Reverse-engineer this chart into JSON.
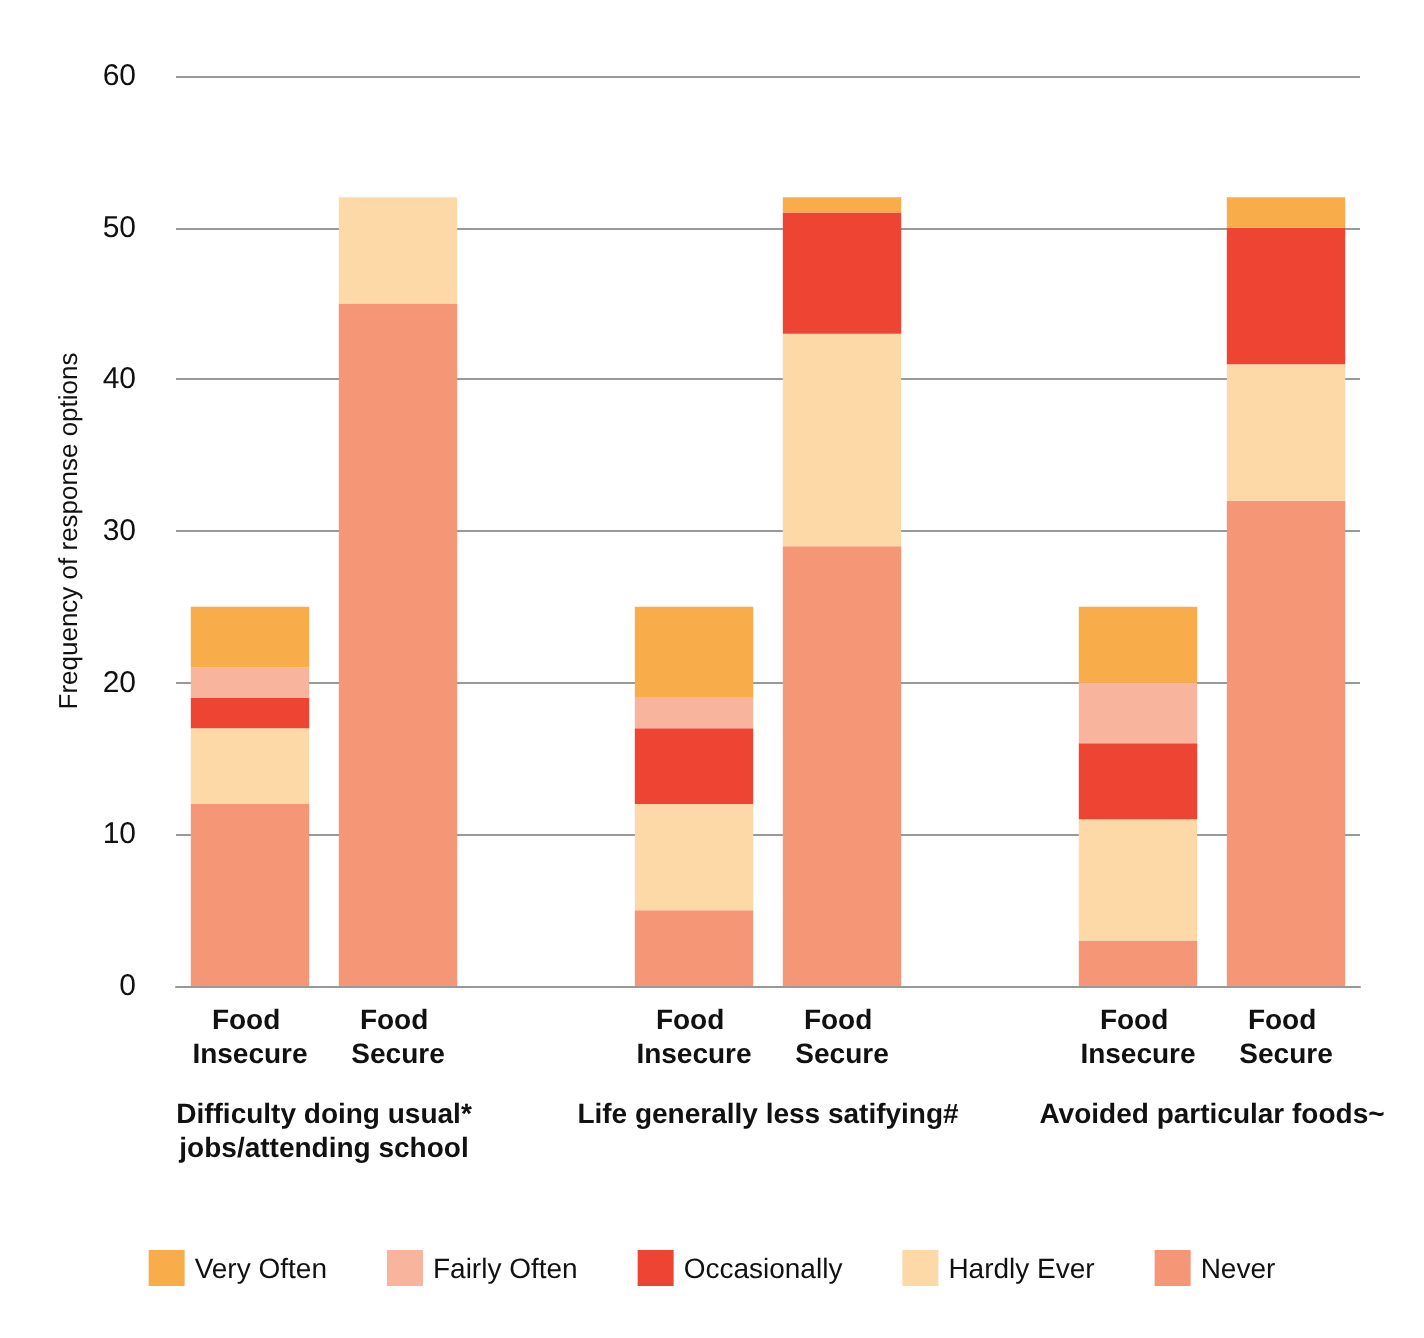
{
  "chart_data": {
    "type": "bar",
    "stacked": true,
    "ylabel": "Frequency of response options",
    "categories": [
      "Food Insecure",
      "Food Secure",
      null,
      "Food Insecure",
      "Food Secure",
      null,
      "Food Insecure",
      "Food Secure"
    ],
    "series": [
      {
        "name": "Never",
        "color": "#f59676",
        "values": [
          12,
          45,
          null,
          5,
          29,
          null,
          3,
          32
        ]
      },
      {
        "name": "Hardly Ever",
        "color": "#fdd9a8",
        "values": [
          5,
          7,
          null,
          7,
          14,
          null,
          8,
          9
        ]
      },
      {
        "name": "Occasionally",
        "color": "#ee4434",
        "values": [
          2,
          0,
          null,
          5,
          8,
          null,
          5,
          9
        ]
      },
      {
        "name": "Fairly Often",
        "color": "#f8b49d",
        "values": [
          2,
          0,
          null,
          2,
          0,
          null,
          4,
          0
        ]
      },
      {
        "name": "Very Often",
        "color": "#f9ad4a",
        "values": [
          4,
          0,
          null,
          6,
          1,
          null,
          5,
          2
        ]
      }
    ],
    "ylim": [
      0,
      60
    ],
    "yticks": [
      0,
      10,
      20,
      30,
      40,
      50,
      60
    ],
    "grid": "y",
    "legend": "bottom",
    "annotations": [
      "Difficulty doing usual*\njobs/attending school",
      "Life generally less satifying#",
      "Avoided particular foods~"
    ]
  }
}
